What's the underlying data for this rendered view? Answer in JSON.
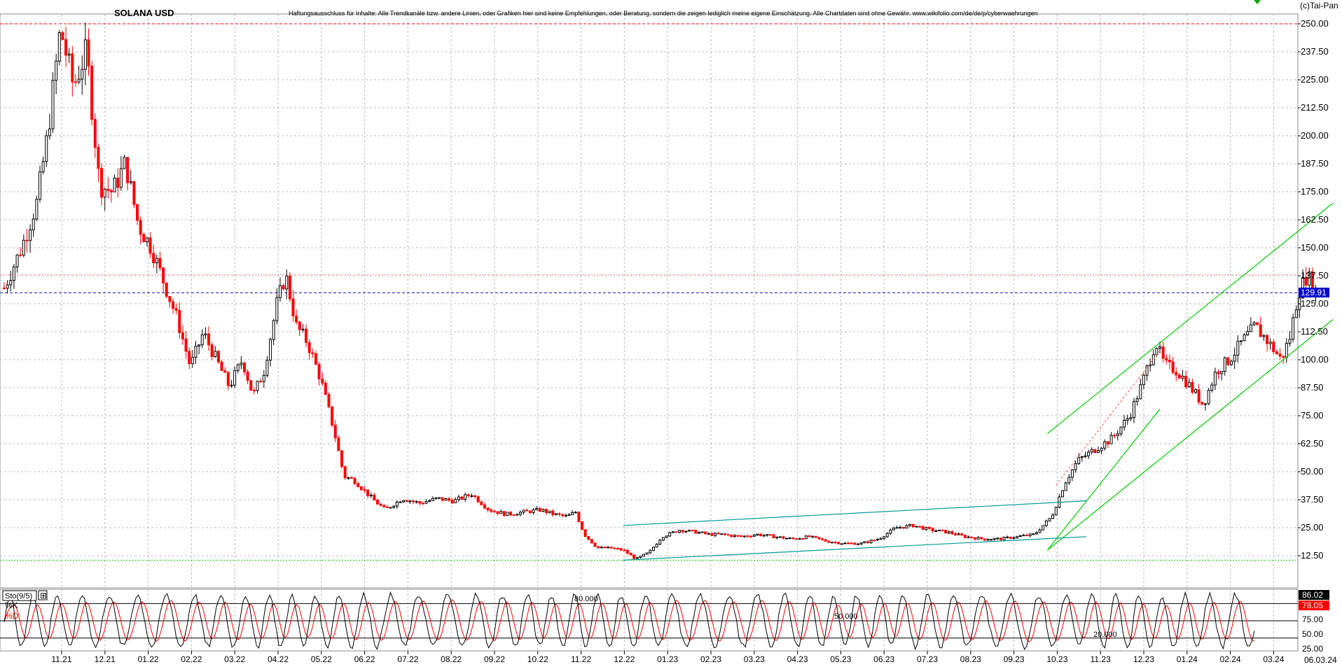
{
  "header": {
    "title": "SOLANA USD",
    "disclaimer": "Haftungsausschluss für Inhalte: Alle Trendkanäle bzw. andere Linien, oder Grafiken hier sind keine Empfehlungen, oder Beratung, sondern die zeigen lediglich meine eigene Einschätzung. Alle Chartdaten sind ohne Gewähr. www.wikifolio.com/de/de/p/cyberwaehrungen",
    "copyright": "(c)Tai-Pan"
  },
  "colors": {
    "up_candle": "#000000",
    "down_candle": "#ff0000",
    "channel_green": "#00cc00",
    "channel_teal": "#009999",
    "current_price_line": "#0000cc",
    "resistance_line": "#ff0000",
    "support_line": "#00cc00",
    "k_line": "#000000",
    "d_line": "#ff0000"
  },
  "indicator": {
    "name": "Sto(9/5)",
    "k_label": "%K",
    "d_label": "%D",
    "k_value": "86.02",
    "d_value": "78.05",
    "level_80": "80.000",
    "level_50": "50.000",
    "level_20": "20.000",
    "axis_ticks": [
      "75.00",
      "50.00",
      "25.00"
    ]
  },
  "chart_data": {
    "type": "candlestick",
    "title": "SOLANA USD",
    "ylim": [
      0,
      256
    ],
    "y_ticks": [
      "250.00",
      "237.50",
      "225.00",
      "212.50",
      "200.00",
      "187.50",
      "175.00",
      "162.50",
      "150.00",
      "137.50",
      "125.00",
      "112.50",
      "100.00",
      "87.50",
      "75.00",
      "62.50",
      "50.00",
      "37.50",
      "25.00",
      "12.50"
    ],
    "x_ticks": [
      "11.21",
      "12.21",
      "01.22",
      "02.22",
      "03.22",
      "04.22",
      "05.22",
      "06.22",
      "07.22",
      "08.22",
      "09.22",
      "10.22",
      "11.22",
      "12.22",
      "01.23",
      "02.23",
      "03.23",
      "04.23",
      "05.23",
      "06.23",
      "07.23",
      "08.23",
      "09.23",
      "10.23",
      "11.23",
      "12.23",
      "01.24",
      "02.24",
      "03.24"
    ],
    "last_date": "06.03.24",
    "current_price": "129.91",
    "current_price_value": 129.91,
    "resistance_level": 250,
    "resistance_level_2": 138,
    "support_level": 10.5,
    "price_path": [
      [
        0,
        132
      ],
      [
        0.4,
        150
      ],
      [
        0.75,
        170
      ],
      [
        1.0,
        200
      ],
      [
        1.3,
        248
      ],
      [
        1.6,
        222
      ],
      [
        1.9,
        238
      ],
      [
        2.2,
        178
      ],
      [
        2.5,
        175
      ],
      [
        2.8,
        188
      ],
      [
        3.1,
        160
      ],
      [
        3.4,
        150
      ],
      [
        3.7,
        134
      ],
      [
        4.0,
        118
      ],
      [
        4.3,
        97
      ],
      [
        4.6,
        112
      ],
      [
        4.9,
        100
      ],
      [
        5.2,
        88
      ],
      [
        5.5,
        100
      ],
      [
        5.75,
        84
      ],
      [
        6.0,
        95
      ],
      [
        6.3,
        125
      ],
      [
        6.5,
        138
      ],
      [
        6.75,
        115
      ],
      [
        7.0,
        108
      ],
      [
        7.3,
        92
      ],
      [
        7.6,
        70
      ],
      [
        7.85,
        48
      ],
      [
        8.1,
        46
      ],
      [
        8.5,
        38
      ],
      [
        8.8,
        33
      ],
      [
        9.2,
        38
      ],
      [
        9.6,
        36
      ],
      [
        10.0,
        38
      ],
      [
        10.4,
        37
      ],
      [
        10.8,
        40
      ],
      [
        11.2,
        33
      ],
      [
        11.6,
        31
      ],
      [
        12.0,
        32
      ],
      [
        12.4,
        33
      ],
      [
        12.7,
        31
      ],
      [
        13.0,
        30
      ],
      [
        13.2,
        32
      ],
      [
        13.4,
        22
      ],
      [
        13.7,
        16
      ],
      [
        14.0,
        16
      ],
      [
        14.3,
        15
      ],
      [
        14.6,
        11
      ],
      [
        14.9,
        14
      ],
      [
        15.2,
        21
      ],
      [
        15.6,
        24
      ],
      [
        16.0,
        23
      ],
      [
        16.3,
        22
      ],
      [
        16.6,
        22
      ],
      [
        17.0,
        21
      ],
      [
        17.4,
        22
      ],
      [
        17.8,
        21
      ],
      [
        18.2,
        20
      ],
      [
        18.6,
        21
      ],
      [
        19.0,
        19
      ],
      [
        19.4,
        18
      ],
      [
        19.8,
        18
      ],
      [
        20.2,
        20
      ],
      [
        20.6,
        25
      ],
      [
        21.0,
        26
      ],
      [
        21.4,
        24
      ],
      [
        21.8,
        23
      ],
      [
        22.2,
        21
      ],
      [
        22.6,
        20
      ],
      [
        23.0,
        20
      ],
      [
        23.4,
        21
      ],
      [
        23.8,
        22
      ],
      [
        24.2,
        30
      ],
      [
        24.5,
        45
      ],
      [
        24.8,
        55
      ],
      [
        25.2,
        60
      ],
      [
        25.6,
        65
      ],
      [
        26.0,
        75
      ],
      [
        26.3,
        90
      ],
      [
        26.6,
        108
      ],
      [
        26.8,
        98
      ],
      [
        27.1,
        95
      ],
      [
        27.4,
        88
      ],
      [
        27.7,
        80
      ],
      [
        28.0,
        95
      ],
      [
        28.3,
        100
      ],
      [
        28.6,
        108
      ],
      [
        28.9,
        115
      ],
      [
        29.2,
        108
      ],
      [
        29.5,
        100
      ],
      [
        29.7,
        110
      ],
      [
        29.9,
        130
      ],
      [
        30.1,
        138
      ],
      [
        30.3,
        130
      ]
    ],
    "channels": [
      {
        "name": "upper-green",
        "from": [
          24.1,
          67
        ],
        "to": [
          30.7,
          170
        ]
      },
      {
        "name": "lower-green",
        "from": [
          24.1,
          15
        ],
        "to": [
          30.7,
          118
        ]
      },
      {
        "name": "mid-green",
        "from": [
          24.1,
          15
        ],
        "to": [
          26.7,
          78
        ]
      },
      {
        "name": "upper-teal",
        "from": [
          14.3,
          26
        ],
        "to": [
          25.0,
          37
        ]
      },
      {
        "name": "lower-teal",
        "from": [
          14.3,
          10.5
        ],
        "to": [
          25.0,
          21
        ]
      },
      {
        "name": "dashed-red",
        "from": [
          24.3,
          44
        ],
        "to": [
          26.7,
          104
        ]
      }
    ],
    "stochastic": {
      "k_last": 86.02,
      "d_last": 78.05,
      "peaks_per_month": 1.6
    }
  }
}
